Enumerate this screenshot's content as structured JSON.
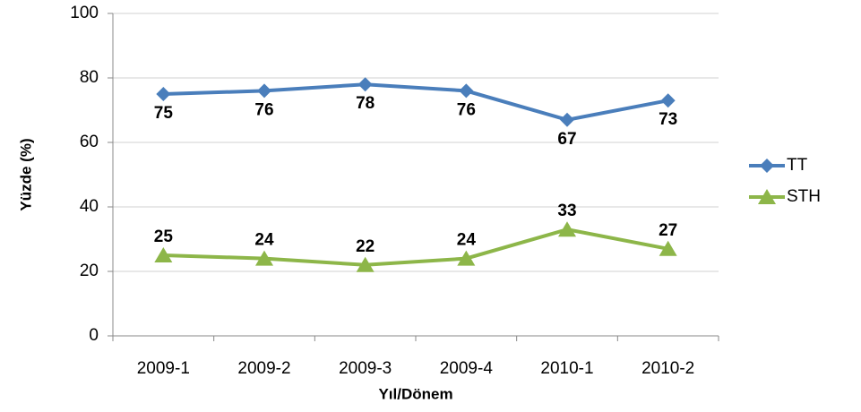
{
  "chart_data": {
    "type": "line",
    "x_label": "Yıl/Dönem",
    "y_label": "Yüzde (%)",
    "categories": [
      "2009-1",
      "2009-2",
      "2009-3",
      "2009-4",
      "2010-1",
      "2010-2"
    ],
    "series": [
      {
        "name": "TT",
        "color": "#4a7ebb",
        "marker": "diamond",
        "label_position": "below",
        "values": [
          75,
          76,
          78,
          76,
          67,
          73
        ]
      },
      {
        "name": "STH",
        "color": "#8db649",
        "marker": "triangle",
        "label_position": "above",
        "values": [
          25,
          24,
          22,
          24,
          33,
          27
        ]
      }
    ],
    "ylim": [
      0,
      100
    ],
    "yticks": [
      0,
      20,
      40,
      60,
      80,
      100
    ],
    "grid": true,
    "legend": "right"
  }
}
